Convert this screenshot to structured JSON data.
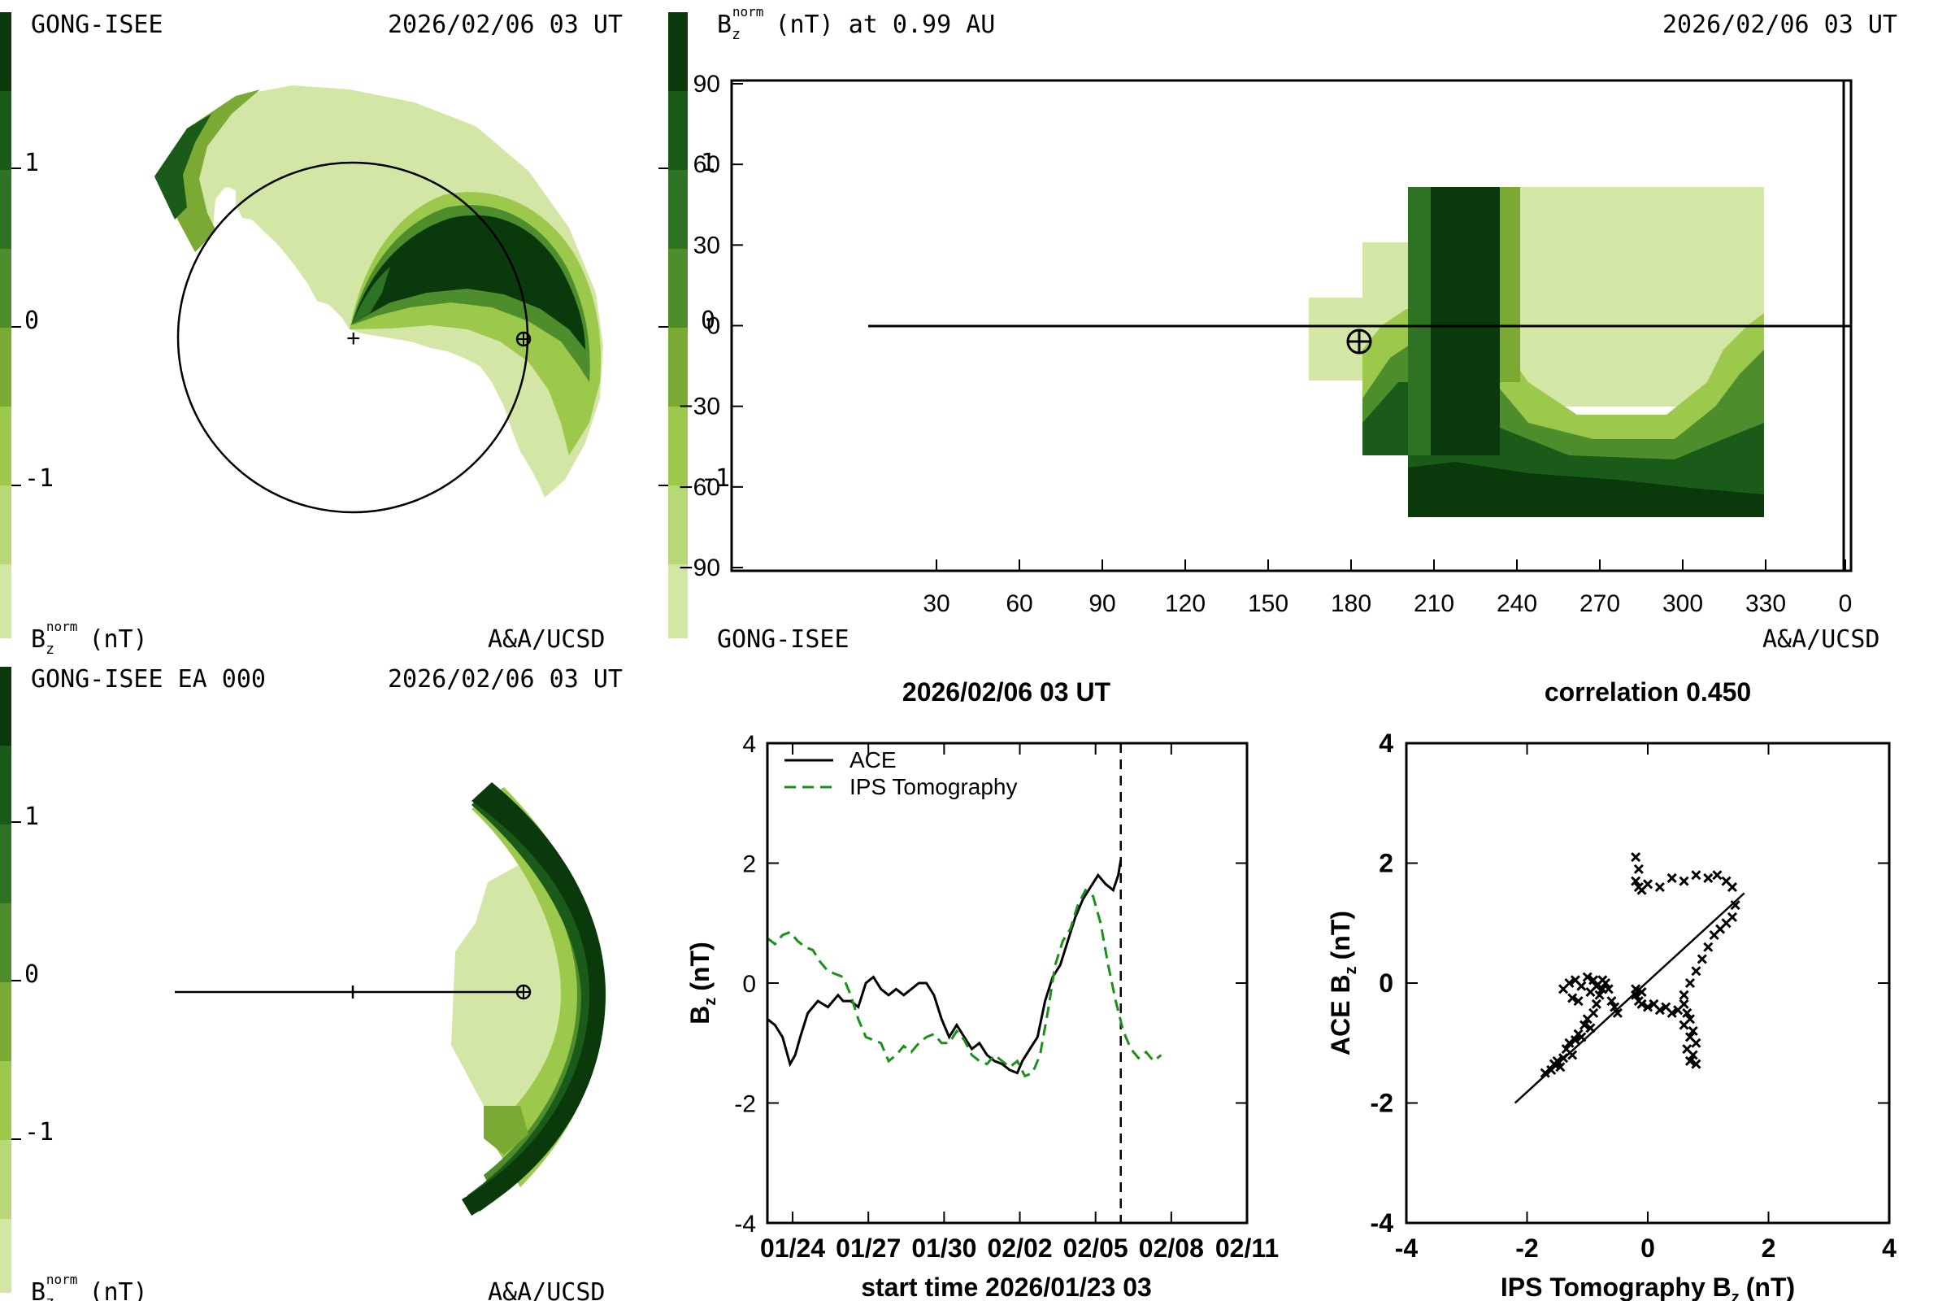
{
  "colors": {
    "c0": "#d4e6a5",
    "c1": "#b8d877",
    "c2": "#9cc84b",
    "c3": "#7aa934",
    "c4": "#4d8d2c",
    "c5": "#2e7324",
    "c6": "#1b5b1a",
    "c7": "#0a3a0c",
    "ace": "#000000",
    "ips": "#1a8f1a"
  },
  "panel1": {
    "title_left": "GONG-ISEE",
    "title_right": "2026/02/06 03 UT",
    "footer_right": "A&A/UCSD",
    "colorbar_ticks": [
      "1",
      "0",
      "-1"
    ],
    "colorbar_label_base": "B",
    "colorbar_label_sub": "z",
    "colorbar_label_sup": "norm",
    "colorbar_label_unit": "(nT)"
  },
  "panel2": {
    "title_label_base": "B",
    "title_label_sub": "z",
    "title_label_sup": "norm",
    "title_label_rest": "(nT) at 0.99 AU",
    "title_right": "2026/02/06 03 UT",
    "footer_left": "GONG-ISEE",
    "footer_right": "A&A/UCSD",
    "colorbar_ticks": [
      "1",
      "0",
      "-1"
    ],
    "yticks": [
      "90",
      "60",
      "30",
      "0",
      "-30",
      "-60",
      "-90"
    ],
    "xticks": [
      "30",
      "60",
      "90",
      "120",
      "150",
      "180",
      "210",
      "240",
      "270",
      "300",
      "330",
      "0"
    ]
  },
  "panel3": {
    "title_left": "GONG-ISEE EA 000",
    "title_right": "2026/02/06 03 UT",
    "footer_right": "A&A/UCSD",
    "colorbar_ticks": [
      "1",
      "0",
      "-1"
    ],
    "colorbar_label_base": "B",
    "colorbar_label_sub": "z",
    "colorbar_label_sup": "norm",
    "colorbar_label_unit": "(nT)"
  },
  "chart_data": [
    {
      "type": "line",
      "title": "2026/02/06 03 UT",
      "xlabel": "start time 2026/01/23 03",
      "ylabel_base": "B",
      "ylabel_sub": "z",
      "ylabel_rest": "(nT)",
      "ylim": [
        -4,
        4
      ],
      "yticks": [
        "4",
        "2",
        "0",
        "-2",
        "-4"
      ],
      "xticks": [
        "01/24",
        "01/27",
        "01/30",
        "02/02",
        "02/05",
        "02/08",
        "02/11"
      ],
      "xlim_days": [
        0,
        19
      ],
      "xtick_days": [
        1,
        4,
        7,
        10,
        13,
        16,
        19
      ],
      "vline_day": 14,
      "series": [
        {
          "name": "ACE",
          "style": "solid",
          "x": [
            0.0,
            0.3,
            0.6,
            0.9,
            1.1,
            1.3,
            1.6,
            2.0,
            2.4,
            2.8,
            3.0,
            3.3,
            3.6,
            3.9,
            4.2,
            4.5,
            4.8,
            5.1,
            5.4,
            5.7,
            6.0,
            6.3,
            6.6,
            6.9,
            7.2,
            7.5,
            7.8,
            8.1,
            8.4,
            8.7,
            9.0,
            9.3,
            9.6,
            9.9,
            10.1,
            10.4,
            10.7,
            11.0,
            11.3,
            11.6,
            11.9,
            12.2,
            12.5,
            12.8,
            13.1,
            13.4,
            13.7,
            13.9,
            14.0
          ],
          "y": [
            -0.6,
            -0.7,
            -0.9,
            -1.35,
            -1.2,
            -0.9,
            -0.5,
            -0.3,
            -0.4,
            -0.2,
            -0.3,
            -0.3,
            -0.4,
            0.0,
            0.1,
            -0.1,
            -0.2,
            -0.1,
            -0.2,
            -0.1,
            0.0,
            0.0,
            -0.2,
            -0.6,
            -0.9,
            -0.7,
            -0.9,
            -1.1,
            -1.0,
            -1.2,
            -1.3,
            -1.35,
            -1.45,
            -1.5,
            -1.3,
            -1.1,
            -0.9,
            -0.3,
            0.1,
            0.3,
            0.7,
            1.1,
            1.4,
            1.6,
            1.8,
            1.65,
            1.55,
            1.8,
            2.05
          ]
        },
        {
          "name": "IPS Tomography",
          "style": "dashed",
          "x": [
            0.0,
            0.3,
            0.6,
            0.9,
            1.2,
            1.5,
            1.8,
            2.1,
            2.4,
            2.7,
            3.0,
            3.3,
            3.6,
            3.9,
            4.2,
            4.5,
            4.8,
            5.1,
            5.4,
            5.7,
            6.0,
            6.3,
            6.6,
            6.9,
            7.2,
            7.5,
            7.8,
            8.1,
            8.4,
            8.7,
            9.0,
            9.3,
            9.6,
            9.9,
            10.2,
            10.5,
            10.8,
            11.1,
            11.4,
            11.7,
            12.0,
            12.3,
            12.6,
            12.9,
            13.2,
            13.5,
            13.8,
            14.1,
            14.4,
            14.7,
            15.0,
            15.3,
            15.6
          ],
          "y": [
            0.75,
            0.65,
            0.8,
            0.85,
            0.7,
            0.6,
            0.55,
            0.35,
            0.2,
            0.15,
            0.1,
            -0.2,
            -0.6,
            -0.9,
            -0.95,
            -1.0,
            -1.3,
            -1.2,
            -1.05,
            -1.15,
            -1.0,
            -0.9,
            -0.85,
            -1.0,
            -1.0,
            -0.8,
            -0.95,
            -1.2,
            -1.3,
            -1.35,
            -1.2,
            -1.3,
            -1.4,
            -1.3,
            -1.55,
            -1.5,
            -1.2,
            -0.5,
            0.3,
            0.7,
            0.9,
            1.3,
            1.55,
            1.45,
            1.0,
            0.3,
            -0.3,
            -0.8,
            -1.1,
            -1.25,
            -1.15,
            -1.3,
            -1.2
          ]
        }
      ]
    },
    {
      "type": "scatter",
      "title": "correlation 0.450",
      "xlabel_base": "IPS Tomography B",
      "xlabel_sub": "z",
      "xlabel_rest": "(nT)",
      "ylabel_base": "ACE B",
      "ylabel_sub": "z",
      "ylabel_rest": "(nT)",
      "xlim": [
        -4,
        4
      ],
      "ylim": [
        -4,
        4
      ],
      "xticks": [
        "-4",
        "-2",
        "0",
        "2",
        "4"
      ],
      "yticks": [
        "4",
        "2",
        "0",
        "-2",
        "-4"
      ],
      "fit_line": {
        "x": [
          -2.2,
          1.6
        ],
        "y": [
          -2.0,
          1.5
        ]
      },
      "points": [
        [
          -1.7,
          -1.5
        ],
        [
          -1.6,
          -1.45
        ],
        [
          -1.55,
          -1.35
        ],
        [
          -1.5,
          -1.3
        ],
        [
          -1.45,
          -1.4
        ],
        [
          -1.4,
          -1.25
        ],
        [
          -1.35,
          -1.1
        ],
        [
          -1.3,
          -1.0
        ],
        [
          -1.25,
          -1.2
        ],
        [
          -1.2,
          -0.95
        ],
        [
          -1.15,
          -0.85
        ],
        [
          -1.1,
          -0.9
        ],
        [
          -1.05,
          -0.7
        ],
        [
          -1.0,
          -0.6
        ],
        [
          -0.95,
          -0.75
        ],
        [
          -0.9,
          -0.5
        ],
        [
          -0.85,
          -0.35
        ],
        [
          -0.8,
          -0.2
        ],
        [
          -0.75,
          -0.1
        ],
        [
          -0.7,
          0.0
        ],
        [
          -1.4,
          -0.1
        ],
        [
          -1.3,
          0.0
        ],
        [
          -1.2,
          0.05
        ],
        [
          -1.1,
          -0.05
        ],
        [
          -1.0,
          0.1
        ],
        [
          -0.9,
          0.05
        ],
        [
          -0.85,
          -0.05
        ],
        [
          -0.75,
          0.05
        ],
        [
          -0.65,
          -0.1
        ],
        [
          -0.6,
          -0.3
        ],
        [
          -0.55,
          -0.4
        ],
        [
          -0.5,
          -0.5
        ],
        [
          -1.25,
          -0.25
        ],
        [
          -1.15,
          -0.3
        ],
        [
          -0.95,
          -0.15
        ],
        [
          -0.2,
          -0.2
        ],
        [
          -0.15,
          -0.3
        ],
        [
          -0.1,
          -0.35
        ],
        [
          0.0,
          -0.4
        ],
        [
          0.1,
          -0.35
        ],
        [
          0.2,
          -0.45
        ],
        [
          0.3,
          -0.4
        ],
        [
          0.4,
          -0.5
        ],
        [
          0.5,
          -0.45
        ],
        [
          0.6,
          -0.35
        ],
        [
          0.65,
          -0.5
        ],
        [
          0.7,
          -0.6
        ],
        [
          0.75,
          -0.8
        ],
        [
          0.8,
          -1.0
        ],
        [
          0.75,
          -1.2
        ],
        [
          0.8,
          -1.35
        ],
        [
          0.7,
          -1.3
        ],
        [
          0.65,
          -1.1
        ],
        [
          0.7,
          -0.9
        ],
        [
          0.6,
          -0.7
        ],
        [
          0.6,
          -0.2
        ],
        [
          0.7,
          0.0
        ],
        [
          0.8,
          0.2
        ],
        [
          0.9,
          0.4
        ],
        [
          1.0,
          0.6
        ],
        [
          1.1,
          0.8
        ],
        [
          1.2,
          0.9
        ],
        [
          1.3,
          1.0
        ],
        [
          1.4,
          1.1
        ],
        [
          1.45,
          1.3
        ],
        [
          1.4,
          1.6
        ],
        [
          1.3,
          1.7
        ],
        [
          1.15,
          1.8
        ],
        [
          1.0,
          1.75
        ],
        [
          0.8,
          1.8
        ],
        [
          0.6,
          1.7
        ],
        [
          0.4,
          1.75
        ],
        [
          0.2,
          1.6
        ],
        [
          0.0,
          1.65
        ],
        [
          -0.1,
          1.55
        ],
        [
          -0.15,
          1.6
        ],
        [
          -0.2,
          1.7
        ],
        [
          -0.2,
          2.1
        ],
        [
          -0.15,
          1.9
        ],
        [
          -0.2,
          -0.1
        ],
        [
          -0.1,
          -0.15
        ]
      ]
    }
  ]
}
